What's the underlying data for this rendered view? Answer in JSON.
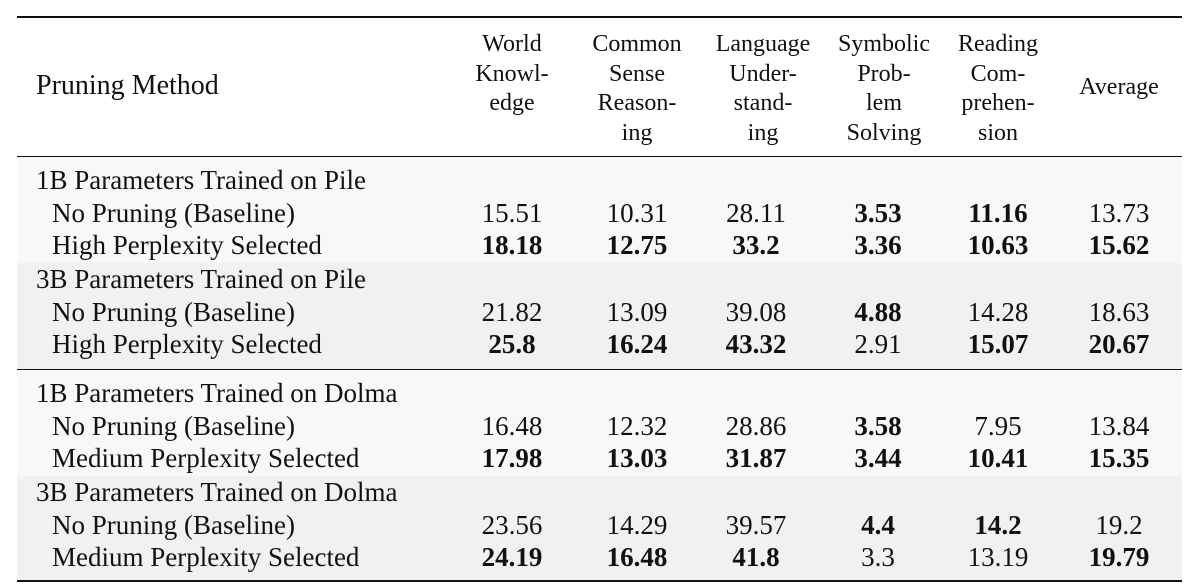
{
  "table": {
    "header": {
      "method": "Pruning Method",
      "columns": [
        {
          "lines": [
            "World",
            "Knowl-",
            "edge"
          ]
        },
        {
          "lines": [
            "Common",
            "Sense",
            "Reason-",
            "ing"
          ]
        },
        {
          "lines": [
            "Language",
            "Under-",
            "stand-",
            "ing"
          ]
        },
        {
          "lines": [
            "Symbolic",
            "Prob-",
            "lem",
            "Solving"
          ]
        },
        {
          "lines": [
            "Reading",
            "Com-",
            "prehen-",
            "sion"
          ]
        },
        {
          "lines": [
            "Average"
          ]
        }
      ]
    },
    "groups": [
      {
        "title": "1B Parameters Trained on Pile",
        "rows": [
          {
            "method": "No Pruning (Baseline)",
            "values": [
              "15.51",
              "10.31",
              "28.11",
              "3.53",
              "11.16",
              "13.73"
            ],
            "bold": [
              false,
              false,
              false,
              true,
              true,
              false
            ]
          },
          {
            "method": "High Perplexity Selected",
            "values": [
              "18.18",
              "12.75",
              "33.2",
              "3.36",
              "10.63",
              "15.62"
            ],
            "bold": [
              true,
              true,
              true,
              true,
              true,
              true
            ]
          }
        ]
      },
      {
        "title": "3B Parameters Trained on Pile",
        "rows": [
          {
            "method": "No Pruning (Baseline)",
            "values": [
              "21.82",
              "13.09",
              "39.08",
              "4.88",
              "14.28",
              "18.63"
            ],
            "bold": [
              false,
              false,
              false,
              true,
              false,
              false
            ]
          },
          {
            "method": "High Perplexity Selected",
            "values": [
              "25.8",
              "16.24",
              "43.32",
              "2.91",
              "15.07",
              "20.67"
            ],
            "bold": [
              true,
              true,
              true,
              false,
              true,
              true
            ]
          }
        ]
      },
      {
        "title": "1B Parameters Trained on Dolma",
        "rows": [
          {
            "method": "No Pruning (Baseline)",
            "values": [
              "16.48",
              "12.32",
              "28.86",
              "3.58",
              "7.95",
              "13.84"
            ],
            "bold": [
              false,
              false,
              false,
              true,
              false,
              false
            ]
          },
          {
            "method": "Medium Perplexity Selected",
            "values": [
              "17.98",
              "13.03",
              "31.87",
              "3.44",
              "10.41",
              "15.35"
            ],
            "bold": [
              true,
              true,
              true,
              true,
              true,
              true
            ]
          }
        ]
      },
      {
        "title": "3B Parameters Trained on Dolma",
        "rows": [
          {
            "method": "No Pruning (Baseline)",
            "values": [
              "23.56",
              "14.29",
              "39.57",
              "4.4",
              "14.2",
              "19.2"
            ],
            "bold": [
              false,
              false,
              false,
              true,
              true,
              false
            ]
          },
          {
            "method": "Medium Perplexity Selected",
            "values": [
              "24.19",
              "16.48",
              "41.8",
              "3.3",
              "13.19",
              "19.79"
            ],
            "bold": [
              true,
              true,
              true,
              false,
              false,
              true
            ]
          }
        ]
      }
    ]
  }
}
